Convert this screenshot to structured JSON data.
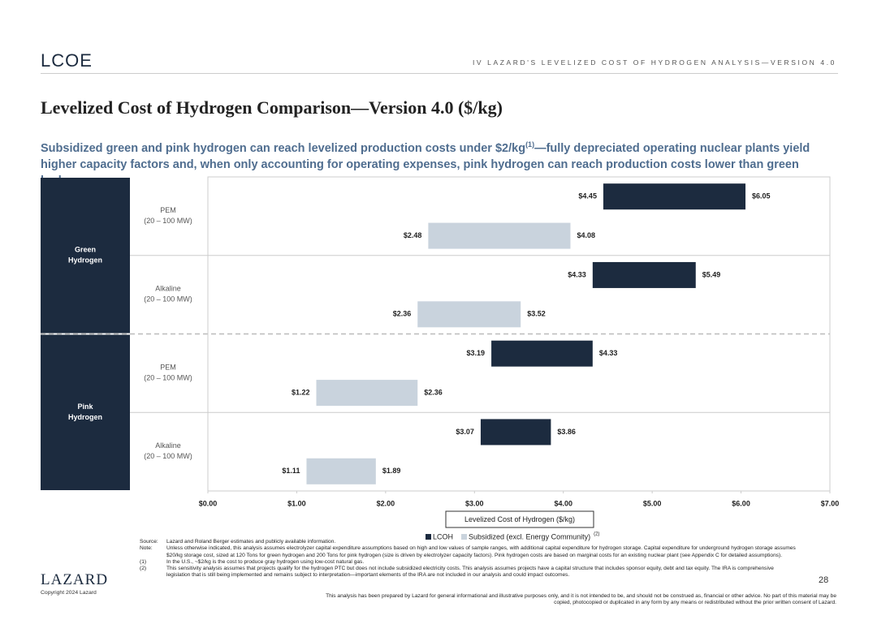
{
  "header": {
    "logo": "LCOE",
    "section": "IV   LAZARD'S LEVELIZED COST OF HYDROGEN ANALYSIS—VERSION 4.0"
  },
  "title": "Levelized Cost of Hydrogen Comparison—Version 4.0 ($/kg)",
  "subtitle": {
    "before": "Subsidized green and pink hydrogen can reach levelized production costs under $2/kg",
    "sup": "(1)",
    "after": "—fully depreciated operating nuclear plants yield higher capacity factors and, when only accounting for operating expenses, pink hydrogen can reach production costs lower than green hydrogen"
  },
  "chart_data": {
    "type": "floating-bar",
    "categories": [
      "PEM",
      "Alkaline",
      "PEM",
      "Alkaline"
    ],
    "category_sublabels": [
      "(20 – 100 MW)",
      "(20 – 100 MW)",
      "(20 – 100 MW)",
      "(20 – 100 MW)"
    ],
    "groups": [
      "Green Hydrogen",
      "Green Hydrogen",
      "Pink Hydrogen",
      "Pink Hydrogen"
    ],
    "series": [
      {
        "name": "LCOH",
        "color": "#1c2b3f",
        "values": [
          [
            4.45,
            6.05
          ],
          [
            4.33,
            5.49
          ],
          [
            3.19,
            4.33
          ],
          [
            3.07,
            3.86
          ]
        ],
        "value_labels": [
          [
            "$4.45",
            "$6.05"
          ],
          [
            "$4.33",
            "$5.49"
          ],
          [
            "$3.19",
            "$4.33"
          ],
          [
            "$3.07",
            "$3.86"
          ]
        ]
      },
      {
        "name": "Subsidized (excl. Energy Community)",
        "color": "#c9d3dd",
        "values": [
          [
            2.48,
            4.08
          ],
          [
            2.36,
            3.52
          ],
          [
            1.22,
            2.36
          ],
          [
            1.11,
            1.89
          ]
        ],
        "value_labels": [
          [
            "$2.48",
            "$4.08"
          ],
          [
            "$2.36",
            "$3.52"
          ],
          [
            "$1.22",
            "$2.36"
          ],
          [
            "$1.11",
            "$1.89"
          ]
        ]
      }
    ],
    "legend_note": "(2)",
    "xlabel": "Levelized Cost of Hydrogen ($/kg)",
    "xlim": [
      0,
      7
    ],
    "xticks": [
      {
        "value": 0,
        "label": "$0.00"
      },
      {
        "value": 1,
        "label": "$1.00"
      },
      {
        "value": 2,
        "label": "$2.00"
      },
      {
        "value": 3,
        "label": "$3.00"
      },
      {
        "value": 4,
        "label": "$4.00"
      },
      {
        "value": 5,
        "label": "$5.00"
      },
      {
        "value": 6,
        "label": "$6.00"
      },
      {
        "value": 7,
        "label": "$7.00"
      }
    ]
  },
  "footnotes": [
    {
      "key": "Source:",
      "text": "Lazard and Roland Berger estimates and publicly available information."
    },
    {
      "key": "Note:",
      "text": "Unless otherwise indicated, this analysis assumes electrolyzer capital expenditure assumptions based on high and low values of sample ranges, with additional capital expenditure for hydrogen storage. Capital expenditure for underground hydrogen storage assumes $20/kg storage cost, sized at 120 Tons for green hydrogen and 200 Tons for pink hydrogen (size is driven by electrolyzer capacity factors). Pink hydrogen costs are based on marginal costs for an existing nuclear plant (see Appendix C for detailed assumptions)."
    },
    {
      "key": "(1)",
      "text": "In the U.S., ~$2/kg is the cost to produce gray hydrogen using low-cost natural gas."
    },
    {
      "key": "(2)",
      "text": "This sensitivity analysis assumes that projects qualify for the hydrogen PTC but does not include subsidized electricity costs. This analysis assumes projects have a capital structure that includes sponsor equity, debt and tax equity. The IRA is comprehensive legislation that is still being implemented and remains subject to interpretation—important elements of the IRA are not included in our analysis and could impact outcomes."
    }
  ],
  "disclaimer": "This analysis has been prepared by Lazard for general informational and illustrative purposes only, and it is not intended to be, and should not be construed as, financial or other advice. No part of this material may be copied, photocopied or duplicated in any form by any means or redistributed without the prior written consent of Lazard.",
  "footer": {
    "brand": "LAZARD",
    "copyright": "Copyright 2024 Lazard",
    "page": "28"
  }
}
